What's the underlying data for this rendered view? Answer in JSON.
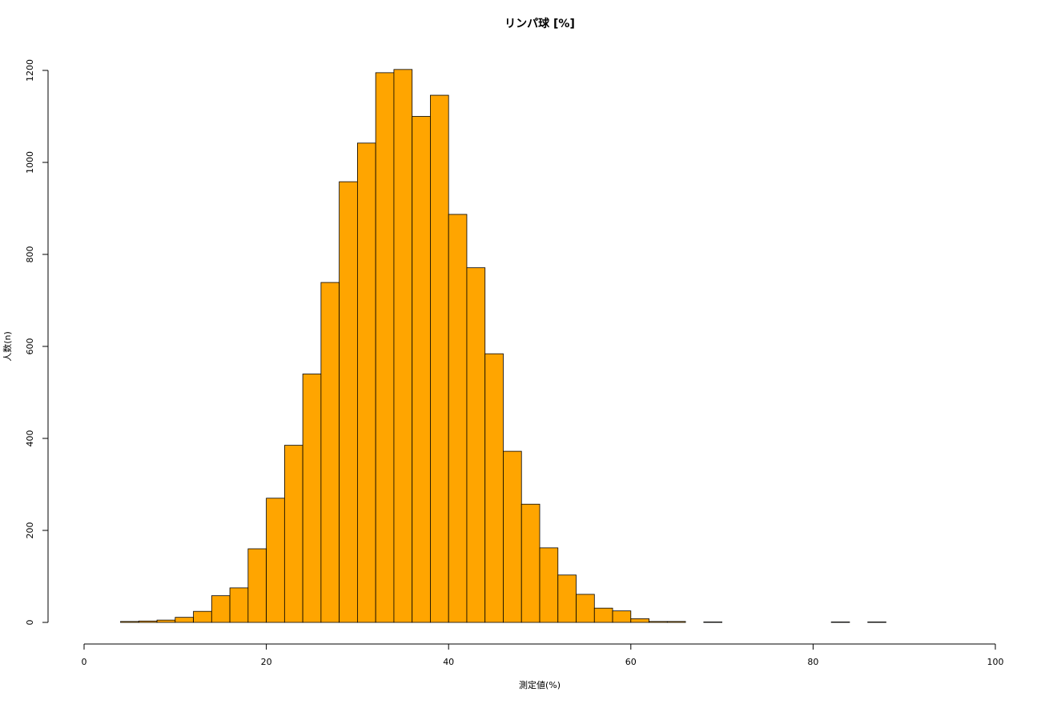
{
  "chart_data": {
    "type": "histogram",
    "title": "リンパ球 [%]",
    "x_label": "測定値(%)",
    "y_label": "人数(n)",
    "bins": [
      4,
      6,
      8,
      10,
      12,
      14,
      16,
      18,
      20,
      22,
      24,
      26,
      28,
      30,
      32,
      34,
      36,
      38,
      40,
      42,
      44,
      46,
      48,
      50,
      52,
      54,
      56,
      58,
      60,
      62,
      64,
      66,
      68,
      70,
      72,
      74,
      76,
      78,
      80,
      82,
      84,
      86,
      88
    ],
    "counts": [
      2,
      3,
      5,
      11,
      24,
      58,
      75,
      160,
      270,
      385,
      540,
      739,
      958,
      1042,
      1195,
      1202,
      1100,
      1146,
      887,
      771,
      584,
      372,
      257,
      162,
      103,
      61,
      31,
      25,
      8,
      2,
      2,
      0,
      1,
      0,
      0,
      0,
      0,
      0,
      0,
      1,
      0,
      1
    ],
    "color": "#ffa500",
    "xlim": [
      0,
      100
    ],
    "xticks": [
      0,
      20,
      40,
      60,
      80,
      100
    ],
    "ylim": [
      0,
      1200
    ],
    "yticks": [
      0,
      200,
      400,
      600,
      800,
      1000,
      1200
    ]
  }
}
